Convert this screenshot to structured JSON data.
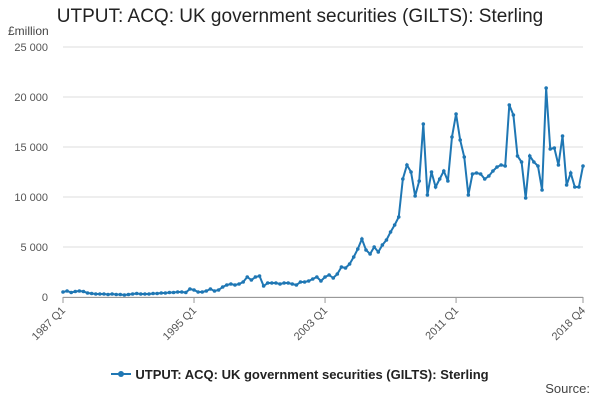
{
  "chart_data": {
    "type": "line",
    "title": "UTPUT: ACQ: UK government securities (GILTS): Sterling",
    "ylabel": "£million",
    "source_label": "Source:",
    "ylim": [
      0,
      25000
    ],
    "yticks": [
      0,
      5000,
      10000,
      15000,
      20000,
      25000
    ],
    "ytick_labels": [
      "0",
      "5 000",
      "10 000",
      "15 000",
      "20 000",
      "25 000"
    ],
    "xtick_labels": [
      "1987 Q1",
      "1995 Q1",
      "2003 Q1",
      "2011 Q1",
      "2018 Q4"
    ],
    "xtick_index": [
      0,
      32,
      64,
      96,
      127
    ],
    "grid": true,
    "legend_position": "bottom",
    "color": "#1f77b4",
    "series": [
      {
        "name": "UTPUT: ACQ: UK government securities (GILTS): Sterling",
        "x": [
          "1987 Q1",
          "1987 Q2",
          "1987 Q3",
          "1987 Q4",
          "1988 Q1",
          "1988 Q2",
          "1988 Q3",
          "1988 Q4",
          "1989 Q1",
          "1989 Q2",
          "1989 Q3",
          "1989 Q4",
          "1990 Q1",
          "1990 Q2",
          "1990 Q3",
          "1990 Q4",
          "1991 Q1",
          "1991 Q2",
          "1991 Q3",
          "1991 Q4",
          "1992 Q1",
          "1992 Q2",
          "1992 Q3",
          "1992 Q4",
          "1993 Q1",
          "1993 Q2",
          "1993 Q3",
          "1993 Q4",
          "1994 Q1",
          "1994 Q2",
          "1994 Q3",
          "1994 Q4",
          "1995 Q1",
          "1995 Q2",
          "1995 Q3",
          "1995 Q4",
          "1996 Q1",
          "1996 Q2",
          "1996 Q3",
          "1996 Q4",
          "1997 Q1",
          "1997 Q2",
          "1997 Q3",
          "1997 Q4",
          "1998 Q1",
          "1998 Q2",
          "1998 Q3",
          "1998 Q4",
          "1999 Q1",
          "1999 Q2",
          "1999 Q3",
          "1999 Q4",
          "2000 Q1",
          "2000 Q2",
          "2000 Q3",
          "2000 Q4",
          "2001 Q1",
          "2001 Q2",
          "2001 Q3",
          "2001 Q4",
          "2002 Q1",
          "2002 Q2",
          "2002 Q3",
          "2002 Q4",
          "2003 Q1",
          "2003 Q2",
          "2003 Q3",
          "2003 Q4",
          "2004 Q1",
          "2004 Q2",
          "2004 Q3",
          "2004 Q4",
          "2005 Q1",
          "2005 Q2",
          "2005 Q3",
          "2005 Q4",
          "2006 Q1",
          "2006 Q2",
          "2006 Q3",
          "2006 Q4",
          "2007 Q1",
          "2007 Q2",
          "2007 Q3",
          "2007 Q4",
          "2008 Q1",
          "2008 Q2",
          "2008 Q3",
          "2008 Q4",
          "2009 Q1",
          "2009 Q2",
          "2009 Q3",
          "2009 Q4",
          "2010 Q1",
          "2010 Q2",
          "2010 Q3",
          "2010 Q4",
          "2011 Q1",
          "2011 Q2",
          "2011 Q3",
          "2011 Q4",
          "2012 Q1",
          "2012 Q2",
          "2012 Q3",
          "2012 Q4",
          "2013 Q1",
          "2013 Q2",
          "2013 Q3",
          "2013 Q4",
          "2014 Q1",
          "2014 Q2",
          "2014 Q3",
          "2014 Q4",
          "2015 Q1",
          "2015 Q2",
          "2015 Q3",
          "2015 Q4",
          "2016 Q1",
          "2016 Q2",
          "2016 Q3",
          "2016 Q4",
          "2017 Q1",
          "2017 Q2",
          "2017 Q3",
          "2017 Q4",
          "2018 Q1",
          "2018 Q2",
          "2018 Q3",
          "2018 Q4"
        ],
        "values": [
          500,
          600,
          450,
          550,
          600,
          550,
          400,
          350,
          300,
          300,
          300,
          250,
          300,
          250,
          250,
          200,
          250,
          300,
          350,
          300,
          300,
          300,
          350,
          350,
          400,
          400,
          450,
          450,
          500,
          500,
          450,
          800,
          700,
          500,
          500,
          600,
          800,
          600,
          700,
          1000,
          1200,
          1300,
          1200,
          1300,
          1500,
          2000,
          1700,
          2000,
          2100,
          1100,
          1400,
          1400,
          1400,
          1300,
          1400,
          1400,
          1300,
          1200,
          1500,
          1500,
          1600,
          1800,
          2000,
          1600,
          2000,
          2200,
          1900,
          2300,
          3000,
          2900,
          3300,
          4000,
          4800,
          5800,
          4700,
          4300,
          5000,
          4500,
          5200,
          5700,
          6500,
          7200,
          8000,
          11800,
          13200,
          12500,
          10100,
          11600,
          17300,
          10200,
          12500,
          11000,
          11800,
          12600,
          11600,
          16000,
          18300,
          15700,
          14000,
          10200,
          12300,
          12400,
          12300,
          11800,
          12100,
          12600,
          13000,
          13200,
          13100,
          19200,
          18200,
          14100,
          13500,
          9900,
          14100,
          13500,
          13100,
          10700,
          20900,
          14800,
          14900,
          13200,
          16100,
          11200,
          12400,
          11000,
          11000,
          13100
        ]
      }
    ]
  }
}
